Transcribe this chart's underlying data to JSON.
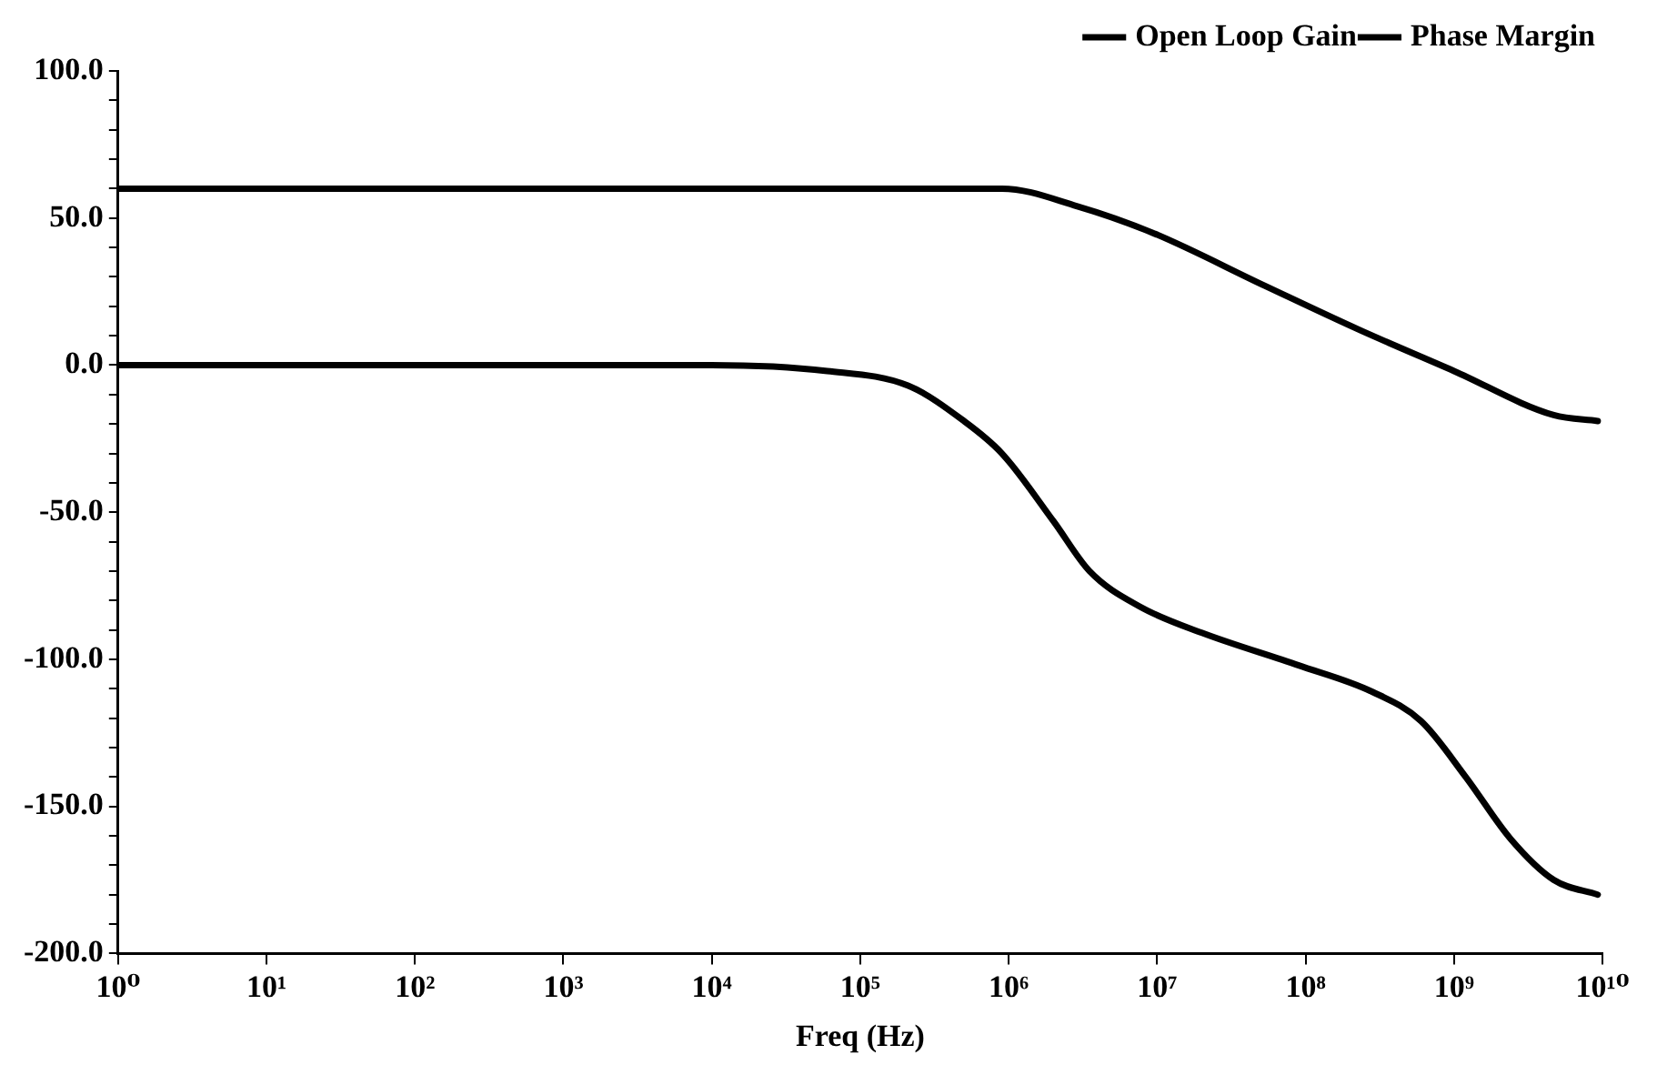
{
  "chart_data": {
    "type": "line",
    "xlabel": "Freq (Hz)",
    "log": "x",
    "legend": "top right",
    "grid": false,
    "marker": "none",
    "line_style": "solid",
    "xlim": [
      1,
      10000000000
    ],
    "ylim": [
      -200,
      100
    ],
    "xticks": [
      {
        "value": 1,
        "label": "10⁰"
      },
      {
        "value": 10,
        "label": "10¹"
      },
      {
        "value": 100,
        "label": "10²"
      },
      {
        "value": 1000,
        "label": "10³"
      },
      {
        "value": 10000,
        "label": "10⁴"
      },
      {
        "value": 100000,
        "label": "10⁵"
      },
      {
        "value": 1000000,
        "label": "10⁶"
      },
      {
        "value": 10000000,
        "label": "10⁷"
      },
      {
        "value": 100000000,
        "label": "10⁸"
      },
      {
        "value": 1000000000,
        "label": "10⁹"
      },
      {
        "value": 10000000000,
        "label": "10¹⁰"
      }
    ],
    "yticks": [
      {
        "value": -200,
        "label": "-200.0"
      },
      {
        "value": -190,
        "label": null
      },
      {
        "value": -180,
        "label": null
      },
      {
        "value": -170,
        "label": null
      },
      {
        "value": -160,
        "label": null
      },
      {
        "value": -150,
        "label": "-150.0"
      },
      {
        "value": -140,
        "label": null
      },
      {
        "value": -130,
        "label": null
      },
      {
        "value": -120,
        "label": null
      },
      {
        "value": -110,
        "label": null
      },
      {
        "value": -100,
        "label": "-100.0"
      },
      {
        "value": -90,
        "label": null
      },
      {
        "value": -80,
        "label": null
      },
      {
        "value": -70,
        "label": null
      },
      {
        "value": -60,
        "label": null
      },
      {
        "value": -50,
        "label": "-50.0"
      },
      {
        "value": -40,
        "label": null
      },
      {
        "value": -30,
        "label": null
      },
      {
        "value": -20,
        "label": null
      },
      {
        "value": -10,
        "label": null
      },
      {
        "value": 0,
        "label": "0.0"
      },
      {
        "value": 10,
        "label": null
      },
      {
        "value": 20,
        "label": null
      },
      {
        "value": 30,
        "label": null
      },
      {
        "value": 40,
        "label": null
      },
      {
        "value": 50,
        "label": "50.0"
      },
      {
        "value": 60,
        "label": null
      },
      {
        "value": 70,
        "label": null
      },
      {
        "value": 80,
        "label": null
      },
      {
        "value": 90,
        "label": null
      },
      {
        "value": 100,
        "label": "100.0"
      }
    ],
    "series": [
      {
        "name": "Open Loop Gain",
        "color": "#000000",
        "x": [
          1,
          10000,
          300000,
          900000,
          2900000,
          9300000,
          53000000,
          230000000,
          1000000000,
          4700000000,
          9300000000
        ],
        "values": [
          60,
          60,
          60,
          60,
          54,
          45,
          27,
          12,
          -2,
          -17,
          -19
        ]
      },
      {
        "name": "Phase Margin",
        "color": "#000000",
        "x": [
          1,
          1000,
          10000,
          60000,
          210000,
          500000,
          900000,
          2000000,
          3500000,
          7600000,
          20000000,
          89000000,
          280000000,
          600000000,
          1200000000,
          2400000000,
          4700000000,
          9300000000
        ],
        "values": [
          0,
          0,
          0,
          -2,
          -7,
          -19,
          -30,
          -53,
          -70,
          -82,
          -91,
          -102,
          -111,
          -121,
          -140,
          -161,
          -175,
          -180
        ]
      }
    ]
  }
}
